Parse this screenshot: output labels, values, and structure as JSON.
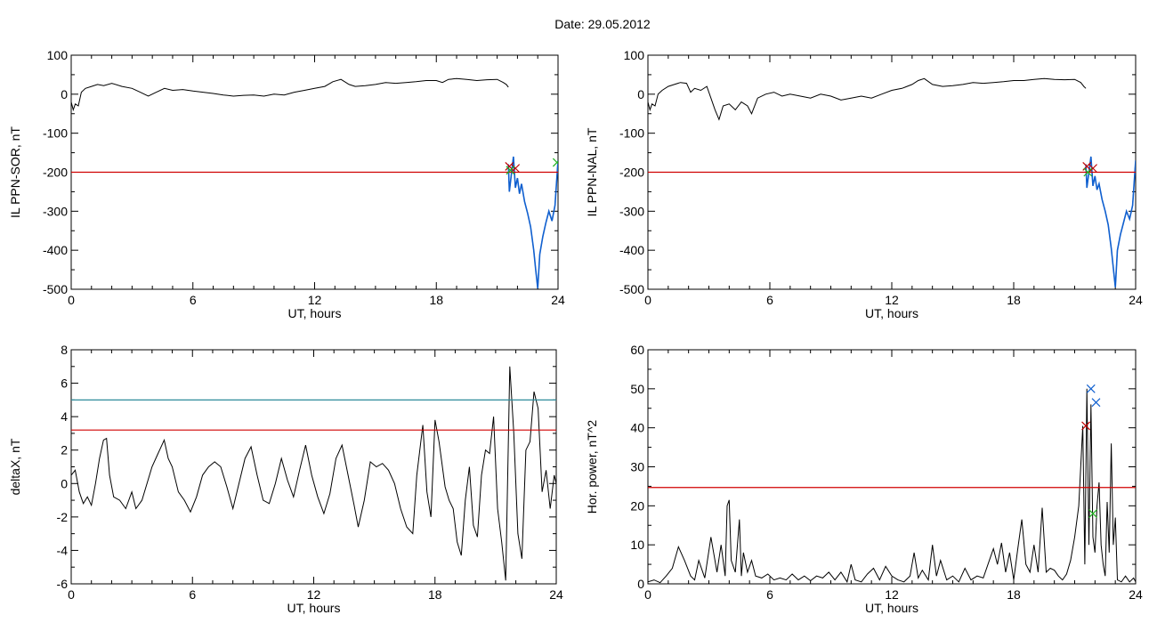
{
  "title": "Date:  29.05.2012",
  "colors": {
    "trace": "#000000",
    "threshold_red": "#d00000",
    "threshold_teal": "#2e8b9a",
    "storm_blue": "#1060d0",
    "marker_red": "#c00000",
    "marker_blue": "#1060d0",
    "marker_green": "#20b020"
  },
  "chart_data": [
    {
      "type": "line",
      "xlabel": "UT, hours",
      "ylabel": "IL PPN-SOR, nT",
      "xlim": [
        0,
        24
      ],
      "ylim": [
        -500,
        100
      ],
      "xticks": [
        "0",
        "6",
        "12",
        "18",
        "24"
      ],
      "yticks": [
        "-500",
        "-400",
        "-300",
        "-200",
        "-100",
        "0",
        "100"
      ],
      "threshold": -200,
      "series": [
        {
          "x": [
            0,
            0.1,
            0.2,
            0.35,
            0.5,
            0.7,
            1.0,
            1.3,
            1.6,
            2.0,
            2.5,
            3.0,
            3.4,
            3.8,
            4.2,
            4.6,
            5.0,
            5.5,
            6.0,
            6.5,
            7.0,
            7.5,
            8.0,
            8.5,
            9.0,
            9.5,
            10.0,
            10.5,
            11.0,
            11.5,
            12.0,
            12.5,
            12.9,
            13.3,
            13.7,
            14.0,
            14.5,
            15.0,
            15.5,
            16.0,
            16.5,
            17.0,
            17.5,
            18.0,
            18.3,
            18.6,
            19.0,
            19.5,
            20.0,
            20.5,
            21.0,
            21.3,
            21.45,
            21.55
          ],
          "y": [
            -20,
            -40,
            -25,
            -30,
            5,
            15,
            20,
            25,
            22,
            28,
            20,
            15,
            5,
            -5,
            5,
            15,
            10,
            12,
            8,
            5,
            2,
            -2,
            -5,
            -3,
            -2,
            -5,
            0,
            -2,
            5,
            10,
            15,
            20,
            32,
            38,
            25,
            20,
            22,
            25,
            30,
            28,
            30,
            32,
            35,
            35,
            30,
            38,
            40,
            38,
            35,
            37,
            38,
            30,
            25,
            18
          ]
        },
        {
          "x": [
            21.55,
            21.6,
            21.7,
            21.8,
            21.9,
            22.0,
            22.1,
            22.2,
            22.35,
            22.5,
            22.65,
            22.8,
            22.9,
            23.0,
            23.1,
            23.25,
            23.4,
            23.55,
            23.7,
            23.85,
            24.0
          ],
          "y": [
            -180,
            -250,
            -205,
            -160,
            -240,
            -215,
            -255,
            -230,
            -275,
            -305,
            -340,
            -400,
            -450,
            -498,
            -410,
            -365,
            -330,
            -300,
            -325,
            -285,
            -170
          ]
        }
      ],
      "markers": [
        {
          "x": 21.6,
          "y": -185,
          "color": "red"
        },
        {
          "x": 21.9,
          "y": -190,
          "color": "red"
        },
        {
          "x": 21.65,
          "y": -195,
          "color": "green"
        },
        {
          "x": 23.95,
          "y": -175,
          "color": "green"
        }
      ]
    },
    {
      "type": "line",
      "xlabel": "UT, hours",
      "ylabel": "IL PPN-NAL, nT",
      "xlim": [
        0,
        24
      ],
      "ylim": [
        -500,
        100
      ],
      "xticks": [
        "0",
        "6",
        "12",
        "18",
        "24"
      ],
      "yticks": [
        "-500",
        "-400",
        "-300",
        "-200",
        "-100",
        "0",
        "100"
      ],
      "threshold": -200,
      "series": [
        {
          "x": [
            0,
            0.1,
            0.2,
            0.35,
            0.5,
            0.7,
            1.0,
            1.3,
            1.6,
            1.9,
            2.1,
            2.3,
            2.6,
            2.9,
            3.1,
            3.3,
            3.5,
            3.7,
            4.0,
            4.3,
            4.6,
            4.9,
            5.1,
            5.4,
            5.8,
            6.2,
            6.6,
            7.0,
            7.5,
            8.0,
            8.5,
            9.0,
            9.5,
            10.0,
            10.5,
            11.0,
            11.5,
            12.0,
            12.5,
            13.0,
            13.3,
            13.6,
            14.0,
            14.5,
            15.0,
            15.5,
            16.0,
            16.5,
            17.0,
            17.5,
            18.0,
            18.5,
            19.0,
            19.5,
            20.0,
            20.5,
            21.0,
            21.3,
            21.45,
            21.55
          ],
          "y": [
            -20,
            -40,
            -25,
            -30,
            0,
            10,
            20,
            25,
            30,
            28,
            5,
            15,
            10,
            20,
            -10,
            -40,
            -65,
            -30,
            -25,
            -40,
            -20,
            -30,
            -50,
            -10,
            0,
            5,
            -5,
            0,
            -5,
            -10,
            0,
            -5,
            -15,
            -10,
            -5,
            -10,
            0,
            10,
            15,
            25,
            35,
            40,
            25,
            20,
            22,
            25,
            30,
            28,
            30,
            32,
            35,
            35,
            38,
            40,
            38,
            37,
            38,
            30,
            20,
            15
          ]
        },
        {
          "x": [
            21.55,
            21.6,
            21.7,
            21.8,
            21.9,
            22.0,
            22.1,
            22.2,
            22.35,
            22.5,
            22.65,
            22.8,
            22.9,
            23.0,
            23.1,
            23.25,
            23.4,
            23.55,
            23.7,
            23.85,
            24.0
          ],
          "y": [
            -180,
            -240,
            -200,
            -160,
            -235,
            -210,
            -245,
            -230,
            -270,
            -300,
            -335,
            -395,
            -445,
            -495,
            -400,
            -360,
            -330,
            -300,
            -320,
            -285,
            -170
          ]
        }
      ],
      "markers": [
        {
          "x": 21.6,
          "y": -185,
          "color": "red"
        },
        {
          "x": 21.9,
          "y": -190,
          "color": "red"
        },
        {
          "x": 21.65,
          "y": -200,
          "color": "green"
        }
      ]
    },
    {
      "type": "line",
      "xlabel": "UT, hours",
      "ylabel": "deltaX, nT",
      "xlim": [
        0,
        24
      ],
      "ylim": [
        -6,
        8
      ],
      "xticks": [
        "0",
        "6",
        "12",
        "18",
        "24"
      ],
      "yticks": [
        "-6",
        "-4",
        "-2",
        "0",
        "2",
        "4",
        "6",
        "8"
      ],
      "thresholds": [
        {
          "value": 5.0,
          "color": "teal"
        },
        {
          "value": 3.2,
          "color": "red"
        }
      ],
      "series": [
        {
          "x": [
            0,
            0.2,
            0.4,
            0.6,
            0.8,
            1.0,
            1.2,
            1.4,
            1.6,
            1.75,
            1.9,
            2.1,
            2.4,
            2.7,
            3.0,
            3.2,
            3.5,
            3.8,
            4.0,
            4.3,
            4.6,
            4.8,
            5.0,
            5.3,
            5.6,
            5.9,
            6.2,
            6.5,
            6.8,
            7.1,
            7.4,
            7.7,
            8.0,
            8.3,
            8.6,
            8.9,
            9.2,
            9.5,
            9.8,
            10.1,
            10.4,
            10.7,
            11.0,
            11.3,
            11.6,
            11.9,
            12.2,
            12.5,
            12.8,
            13.1,
            13.4,
            13.7,
            14.0,
            14.2,
            14.5,
            14.8,
            15.1,
            15.4,
            15.7,
            16.0,
            16.3,
            16.6,
            16.9,
            17.1,
            17.4,
            17.6,
            17.8,
            18.0,
            18.2,
            18.5,
            18.7,
            18.9,
            19.1,
            19.3,
            19.5,
            19.7,
            19.9,
            20.1,
            20.3,
            20.5,
            20.7,
            20.9,
            21.1,
            21.3,
            21.5,
            21.7,
            21.9,
            22.1,
            22.3,
            22.5,
            22.7,
            22.9,
            23.1,
            23.3,
            23.5,
            23.7,
            23.9,
            24.0
          ],
          "y": [
            0.5,
            0.8,
            -0.5,
            -1.2,
            -0.8,
            -1.3,
            0.0,
            1.5,
            2.6,
            2.7,
            0.5,
            -0.8,
            -1.0,
            -1.5,
            -0.5,
            -1.5,
            -1.0,
            0.2,
            1.0,
            1.8,
            2.6,
            1.5,
            1.0,
            -0.5,
            -1.0,
            -1.7,
            -0.8,
            0.5,
            1.0,
            1.3,
            1.0,
            -0.2,
            -1.5,
            0.0,
            1.5,
            2.2,
            0.5,
            -1.0,
            -1.2,
            0.0,
            1.5,
            0.2,
            -0.8,
            0.8,
            2.3,
            0.5,
            -0.8,
            -1.8,
            -0.6,
            1.5,
            2.3,
            0.5,
            -1.3,
            -2.6,
            -1.0,
            1.3,
            1.0,
            1.2,
            0.8,
            0.0,
            -1.5,
            -2.6,
            -3.0,
            0.5,
            3.5,
            -0.5,
            -2.0,
            3.8,
            2.5,
            -0.2,
            -1.0,
            -1.5,
            -3.5,
            -4.3,
            -1.0,
            1.0,
            -2.5,
            -3.2,
            0.5,
            2.0,
            1.8,
            4.0,
            -1.5,
            -3.5,
            -5.8,
            7.0,
            3.0,
            -3.0,
            -4.5,
            2.0,
            2.5,
            5.5,
            4.5,
            -0.5,
            0.8,
            -1.5,
            0.5,
            0.0
          ]
        }
      ]
    },
    {
      "type": "line",
      "xlabel": "UT, hours",
      "ylabel": "Hor. power, nT^2",
      "xlim": [
        0,
        24
      ],
      "ylim": [
        0,
        60
      ],
      "xticks": [
        "0",
        "6",
        "12",
        "18",
        "24"
      ],
      "yticks": [
        "0",
        "10",
        "20",
        "30",
        "40",
        "50",
        "60"
      ],
      "threshold": 24.7,
      "series": [
        {
          "x": [
            0,
            0.3,
            0.6,
            0.9,
            1.2,
            1.5,
            1.8,
            2.1,
            2.3,
            2.5,
            2.8,
            3.1,
            3.4,
            3.6,
            3.8,
            3.9,
            4.0,
            4.1,
            4.3,
            4.5,
            4.6,
            4.7,
            4.9,
            5.1,
            5.3,
            5.6,
            5.9,
            6.2,
            6.5,
            6.8,
            7.1,
            7.4,
            7.7,
            8.0,
            8.3,
            8.6,
            8.9,
            9.2,
            9.5,
            9.8,
            10.0,
            10.2,
            10.5,
            10.8,
            11.1,
            11.4,
            11.7,
            12.0,
            12.3,
            12.6,
            12.9,
            13.1,
            13.3,
            13.5,
            13.8,
            14.0,
            14.2,
            14.4,
            14.7,
            15.0,
            15.3,
            15.6,
            15.9,
            16.2,
            16.5,
            16.8,
            17.0,
            17.2,
            17.4,
            17.6,
            17.8,
            18.0,
            18.2,
            18.4,
            18.6,
            18.8,
            19.0,
            19.2,
            19.4,
            19.6,
            19.8,
            20.0,
            20.2,
            20.4,
            20.6,
            20.8,
            21.0,
            21.2,
            21.4,
            21.5,
            21.6,
            21.7,
            21.8,
            21.9,
            22.0,
            22.1,
            22.2,
            22.3,
            22.4,
            22.5,
            22.6,
            22.7,
            22.8,
            22.9,
            23.0,
            23.1,
            23.3,
            23.5,
            23.7,
            23.9,
            24.0
          ],
          "y": [
            0.5,
            1.0,
            0.3,
            2.0,
            4.0,
            9.5,
            6.0,
            2.0,
            1.0,
            6.0,
            1.5,
            12.0,
            3.0,
            10.0,
            2.0,
            20.0,
            21.5,
            6.0,
            3.0,
            16.5,
            2.0,
            8.0,
            3.0,
            6.0,
            2.0,
            1.5,
            2.5,
            1.0,
            1.5,
            1.0,
            2.5,
            1.0,
            2.0,
            0.8,
            2.0,
            1.5,
            3.0,
            1.0,
            3.0,
            0.5,
            5.0,
            1.0,
            0.5,
            2.5,
            4.0,
            1.0,
            4.5,
            2.0,
            1.0,
            0.5,
            2.0,
            8.0,
            1.5,
            3.5,
            1.0,
            10.0,
            2.0,
            6.0,
            1.0,
            2.0,
            0.5,
            4.0,
            1.0,
            2.0,
            1.5,
            6.0,
            9.0,
            5.0,
            10.5,
            3.0,
            8.0,
            1.0,
            9.0,
            16.5,
            5.0,
            3.0,
            10.0,
            3.0,
            19.5,
            3.0,
            4.0,
            3.5,
            2.0,
            1.0,
            2.5,
            6.0,
            12.0,
            20.0,
            40.5,
            5.0,
            50.0,
            10.0,
            46.0,
            12.0,
            8.0,
            20.0,
            26.0,
            10.0,
            5.0,
            2.0,
            21.0,
            8.0,
            36.0,
            10.0,
            17.0,
            1.0,
            0.5,
            2.0,
            0.5,
            1.5,
            0.5
          ]
        }
      ],
      "markers": [
        {
          "x": 21.55,
          "y": 40.5,
          "color": "red"
        },
        {
          "x": 21.8,
          "y": 50.0,
          "color": "blue"
        },
        {
          "x": 22.05,
          "y": 46.5,
          "color": "blue"
        },
        {
          "x": 21.9,
          "y": 18.0,
          "color": "green"
        }
      ]
    }
  ]
}
